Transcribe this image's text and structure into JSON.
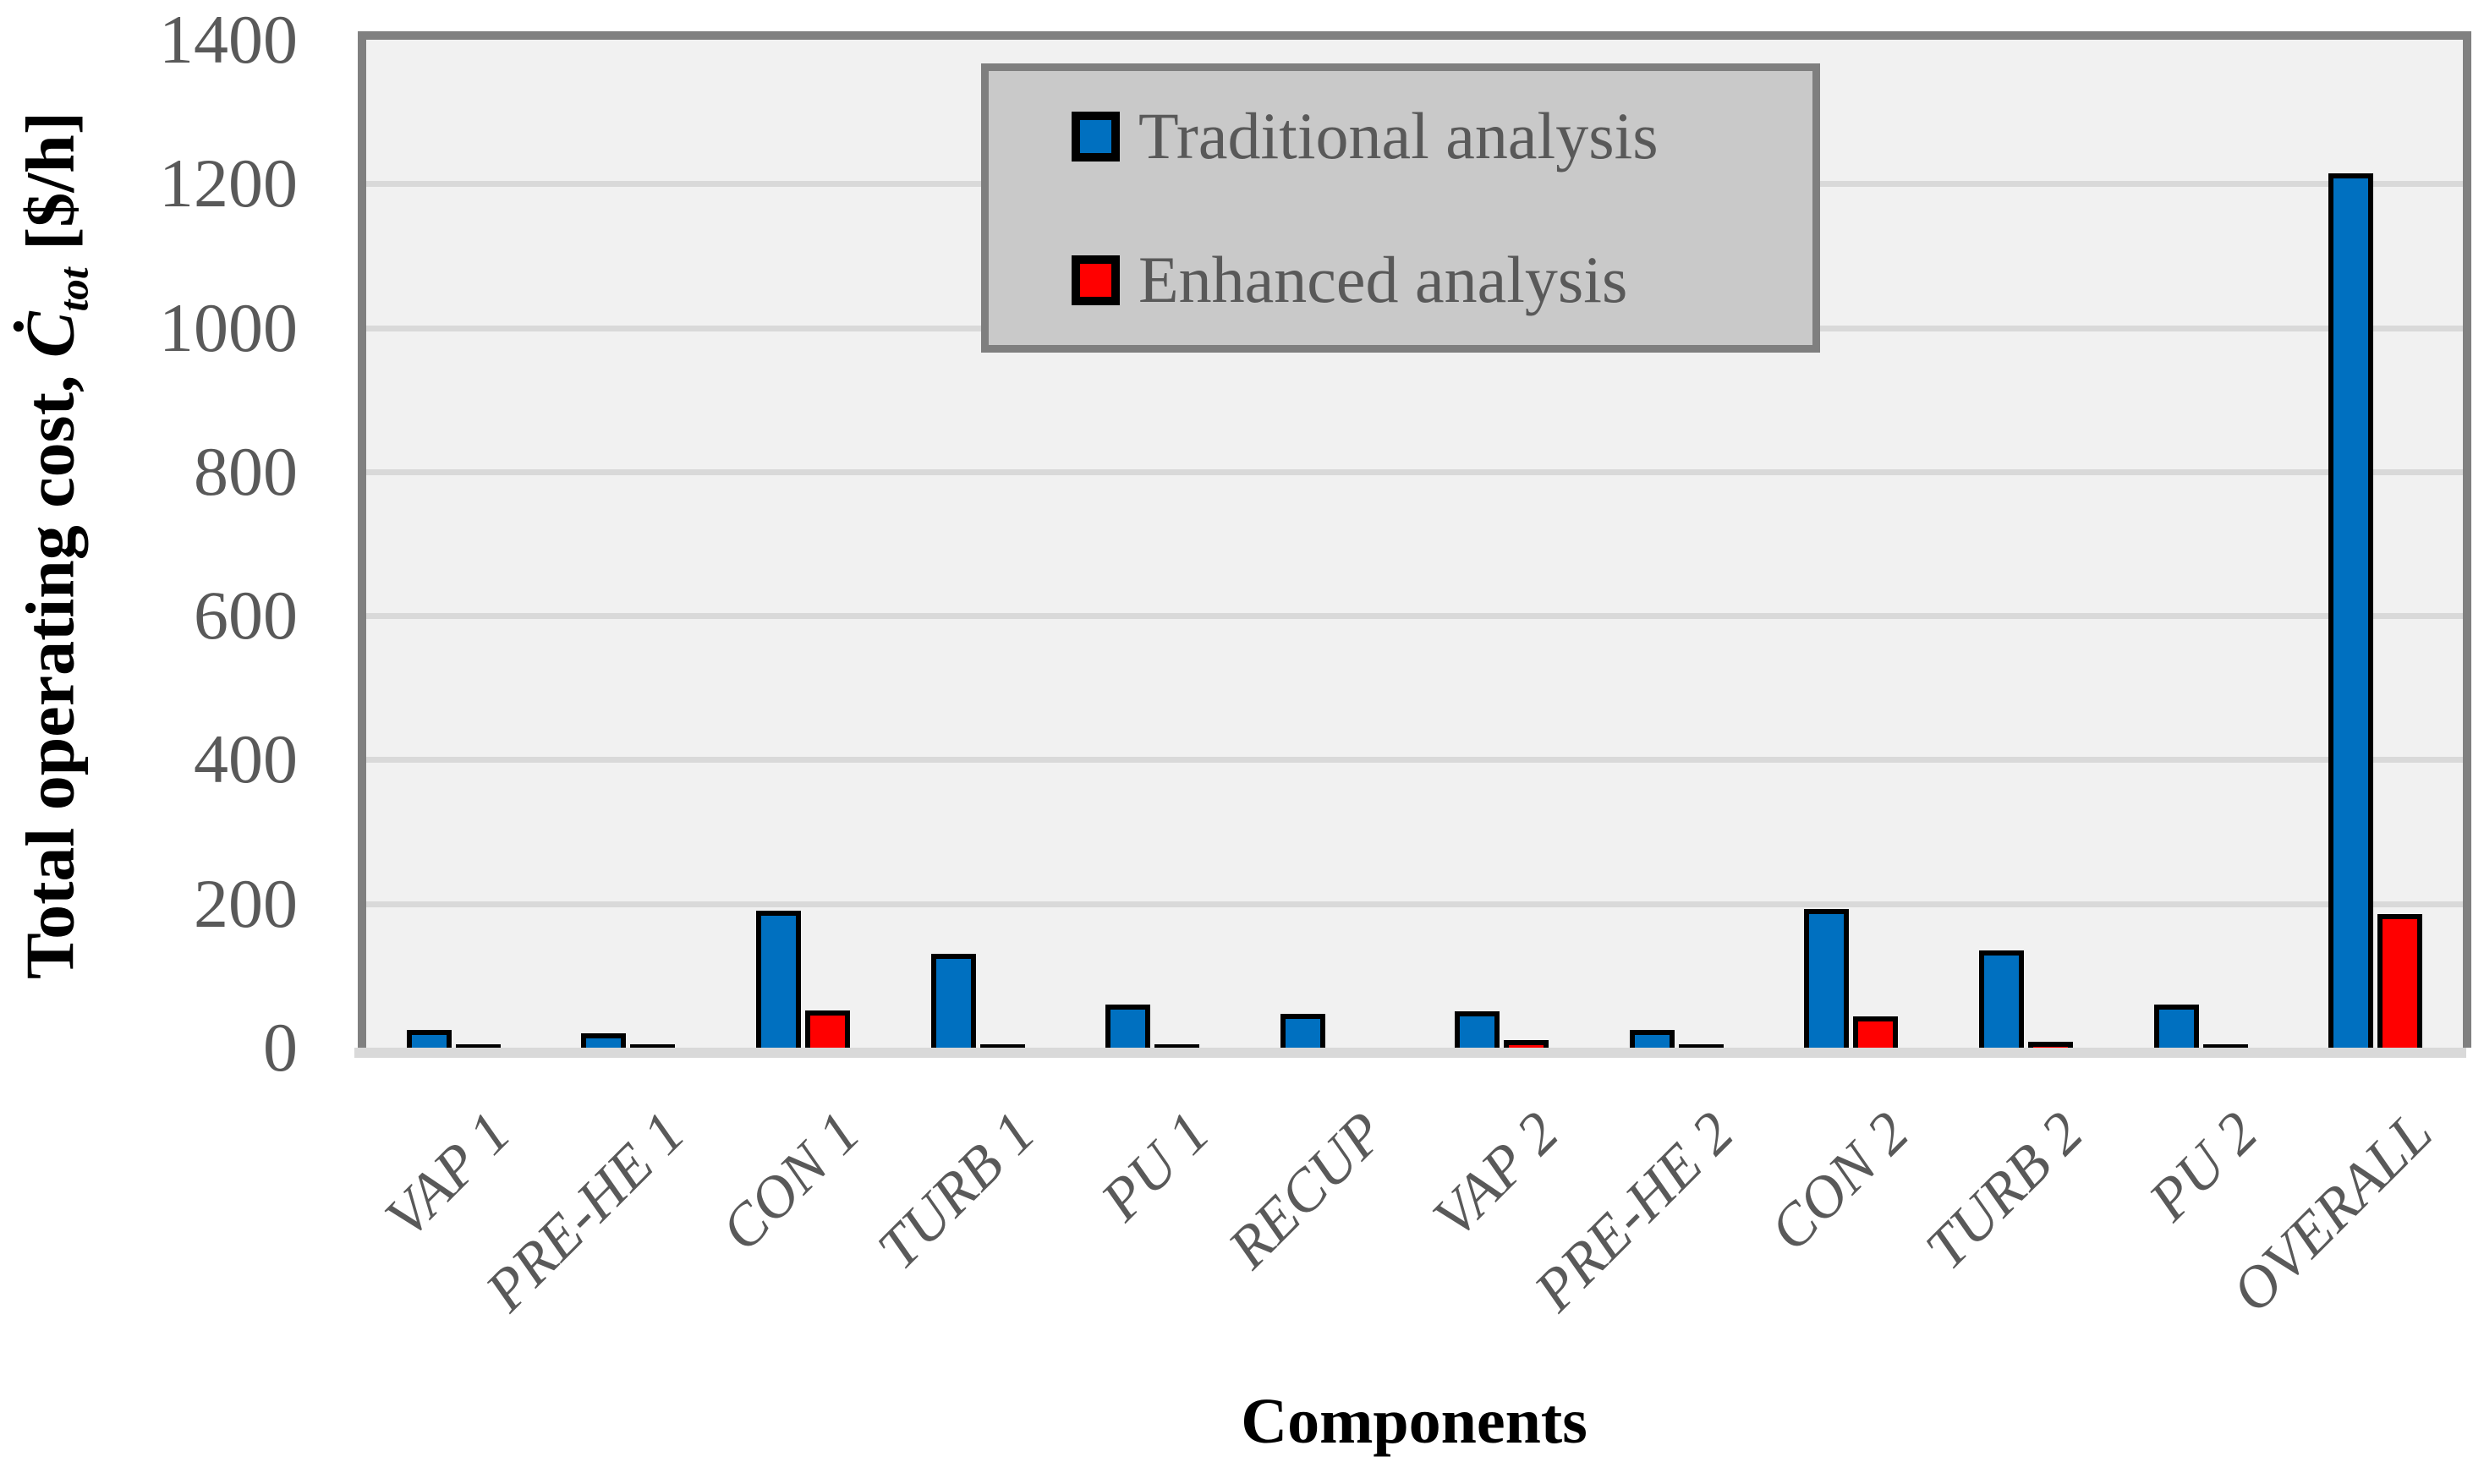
{
  "chart_data": {
    "type": "bar",
    "title": "",
    "xlabel": "Components",
    "ylabel_plain": "Total operating cost, Ċtot [$/h]",
    "ylabel_parts": {
      "prefix": "Total operating cost, ",
      "symbol": "Ċ",
      "subscript": "tot",
      "suffix": " [$/h]"
    },
    "categories": [
      "VAP 1",
      "PRE-HE 1",
      "CON 1",
      "TURB 1",
      "PU 1",
      "RECUP",
      "VAP 2",
      "PRE-HE 2",
      "CON 2",
      "TURB 2",
      "PU 2",
      "OVERALL"
    ],
    "series": [
      {
        "name": "Traditional analysis",
        "color": "#0070C0",
        "values": [
          25,
          20,
          190,
          130,
          60,
          47,
          50,
          25,
          193,
          135,
          60,
          1215
        ]
      },
      {
        "name": "Enhanced analysis",
        "color": "#FF0000",
        "values": [
          5,
          5,
          52,
          5,
          5,
          0,
          10,
          5,
          44,
          8,
          5,
          185
        ]
      }
    ],
    "ylim": [
      0,
      1400
    ],
    "yticks": [
      0,
      200,
      400,
      600,
      800,
      1000,
      1200,
      1400
    ],
    "grid": true,
    "legend_position": "top-center-inside"
  },
  "colors": {
    "traditional_bar": "#0070C0",
    "enhanced_bar": "#FF0000",
    "bar_border": "#000000",
    "plot_background": "#F1F1F1",
    "gridline": "#D9D9D9",
    "axis_baseline": "#D9D9D9",
    "plot_border": "#808080",
    "legend_background": "#C9C9C9",
    "legend_border": "#7F7F7F",
    "tick_text": "#595959",
    "category_text": "#595959",
    "title_text": "#000000"
  }
}
